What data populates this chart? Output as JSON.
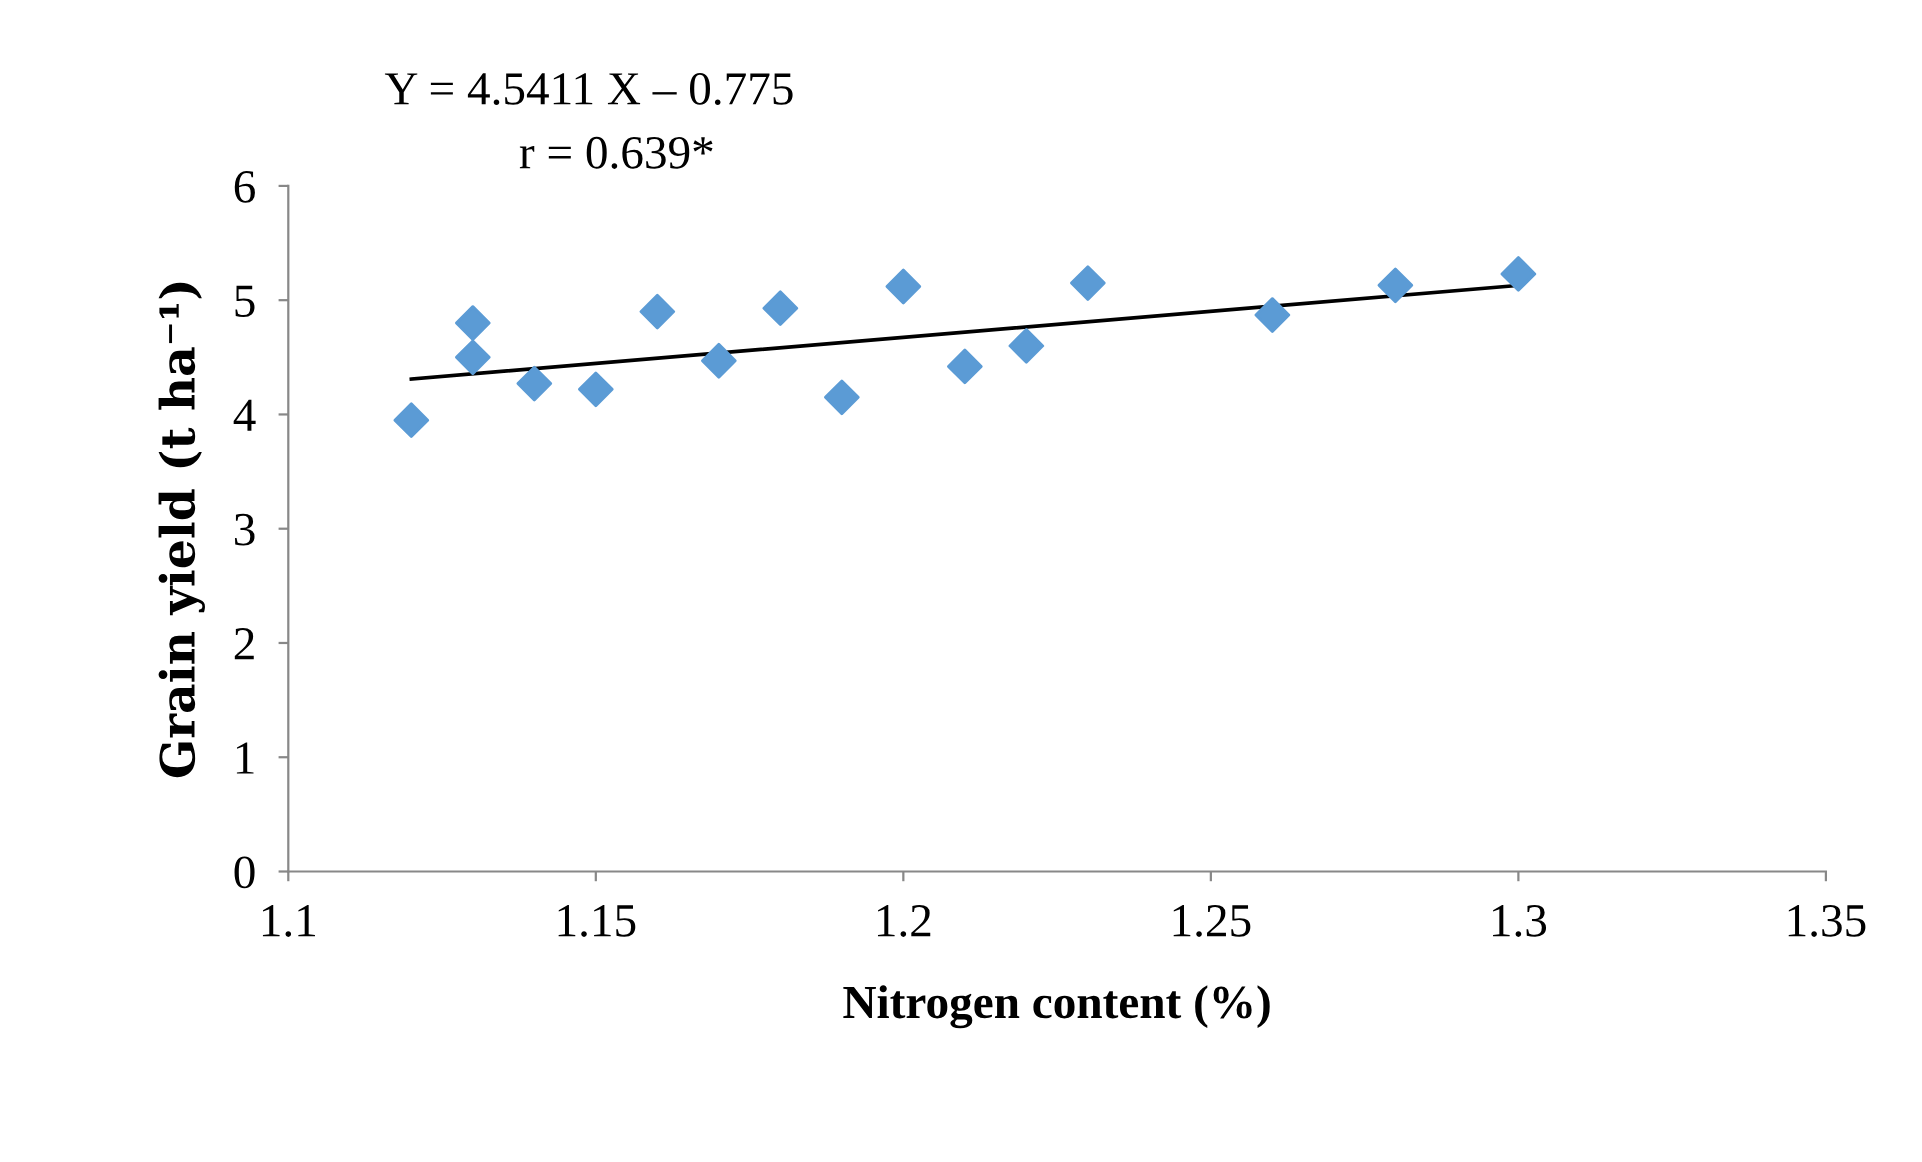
{
  "chart_data": {
    "type": "scatter",
    "xlabel": "Nitrogen content (%)",
    "ylabel": "Grain yield (t ha⁻¹)",
    "annotations": [
      "Y = 4.5411 X – 0.775",
      "r = 0.639*"
    ],
    "xlim": [
      1.1,
      1.35
    ],
    "xticks": [
      {
        "value": 1.1,
        "label": "1.1"
      },
      {
        "value": 1.15,
        "label": "1.15"
      },
      {
        "value": 1.2,
        "label": "1.2"
      },
      {
        "value": 1.25,
        "label": "1.25"
      },
      {
        "value": 1.3,
        "label": "1.3"
      },
      {
        "value": 1.35,
        "label": "1.35"
      }
    ],
    "ylim": [
      0,
      6
    ],
    "yticks": [
      0,
      1,
      2,
      3,
      4,
      5,
      6
    ],
    "grid": false,
    "legend": false,
    "series": [
      {
        "color": "#5b9bd5",
        "marker": "diamond",
        "x": [
          1.12,
          1.13,
          1.13,
          1.14,
          1.15,
          1.16,
          1.17,
          1.18,
          1.19,
          1.2,
          1.21,
          1.22,
          1.23,
          1.26,
          1.28,
          1.3
        ],
        "values": [
          3.95,
          4.8,
          4.5,
          4.27,
          4.22,
          4.9,
          4.47,
          4.93,
          4.15,
          5.12,
          4.42,
          4.6,
          5.15,
          4.87,
          5.13,
          5.23
        ]
      },
      {
        "type": "line",
        "color": "#000000",
        "marker": "none",
        "line_style": "solid",
        "x": [
          1.12,
          1.3
        ],
        "values": [
          4.31,
          5.13
        ]
      }
    ]
  }
}
